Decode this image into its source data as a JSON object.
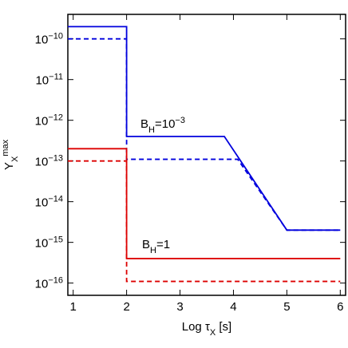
{
  "chart_data": {
    "type": "line",
    "x_label": {
      "main": "Log τ",
      "sub": "X",
      "tail": " [s]"
    },
    "y_label": {
      "main": "Y",
      "sub": "X",
      "sup": "max"
    },
    "log_y": true,
    "xlim": [
      0.9,
      6.1
    ],
    "xticks": [
      1,
      2,
      3,
      4,
      5,
      6
    ],
    "ylim": [
      5e-17,
      4e-10
    ],
    "yticks": [
      {
        "value": 1e-10,
        "label": "10",
        "exponent": "−10"
      },
      {
        "value": 1e-11,
        "label": "10",
        "exponent": "−11"
      },
      {
        "value": 1e-12,
        "label": "10",
        "exponent": "−12"
      },
      {
        "value": 1e-13,
        "label": "10",
        "exponent": "−13"
      },
      {
        "value": 1e-14,
        "label": "10",
        "exponent": "−14"
      },
      {
        "value": 1e-15,
        "label": "10",
        "exponent": "−15"
      },
      {
        "value": 1e-16,
        "label": "10",
        "exponent": "−16"
      }
    ],
    "series": [
      {
        "color": "#0000dd",
        "dashed": false,
        "x": [
          0.9,
          2,
          2,
          3.83,
          5,
          6
        ],
        "values": [
          2e-10,
          2e-10,
          4e-13,
          4e-13,
          2e-15,
          2e-15
        ]
      },
      {
        "color": "#0000dd",
        "dashed": true,
        "x": [
          0.9,
          2,
          2,
          4.08,
          5,
          6
        ],
        "values": [
          1e-10,
          1e-10,
          1.1e-13,
          1.1e-13,
          2e-15,
          2e-15
        ]
      },
      {
        "color": "#dd0000",
        "dashed": false,
        "x": [
          0.9,
          2,
          2,
          6
        ],
        "values": [
          2e-13,
          2e-13,
          4e-16,
          4e-16
        ]
      },
      {
        "color": "#dd0000",
        "dashed": true,
        "x": [
          0.9,
          2,
          2,
          6
        ],
        "values": [
          1e-13,
          1e-13,
          1.1e-16,
          1.1e-16
        ]
      }
    ],
    "annotations": [
      {
        "main": "B",
        "sub": "H",
        "mid": "=10",
        "sup": "−3"
      },
      {
        "main": "B",
        "sub": "H",
        "mid": "=1"
      }
    ]
  }
}
